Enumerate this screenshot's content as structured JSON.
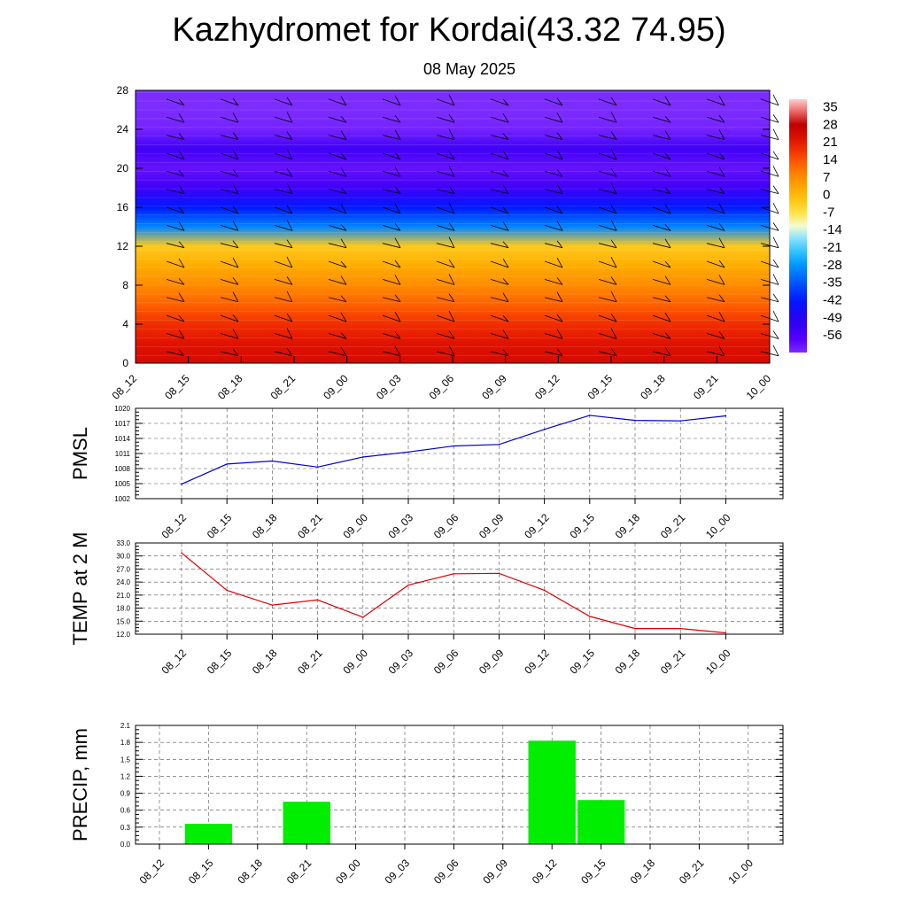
{
  "title": "Kazhydromet for Kordai(43.32 74.95)",
  "subtitle": "08 May 2025",
  "colors": {
    "pmsl_line": "#0000cc",
    "temp_line": "#dd0000",
    "precip_bar": "#00ee00"
  },
  "chart_data": [
    {
      "type": "heatmap",
      "name": "cross-section",
      "x": [
        "08_12",
        "08_15",
        "08_18",
        "08_21",
        "09_00",
        "09_03",
        "09_06",
        "09_09",
        "09_12",
        "09_15",
        "09_18",
        "09_21",
        "10_00"
      ],
      "yticks": [
        0,
        4,
        8,
        12,
        16,
        20,
        24,
        28
      ],
      "ylim": [
        0,
        28
      ],
      "profile_levels": [
        0,
        2,
        4,
        6,
        8,
        10,
        12,
        14,
        16,
        18,
        20,
        22,
        24,
        26,
        28
      ],
      "profile_values": [
        24,
        22,
        18,
        12,
        7,
        2,
        -3,
        -30,
        -42,
        -54,
        -60,
        -54,
        -62,
        -64,
        -64
      ],
      "colorbar": {
        "labels": [
          35,
          28,
          21,
          14,
          7,
          0,
          -7,
          -14,
          -21,
          -28,
          -35,
          -42,
          -49,
          -56
        ],
        "range": [
          -63,
          38
        ]
      }
    },
    {
      "type": "line",
      "name": "PMSL",
      "ylabel": "PMSL",
      "x": [
        "08_12",
        "08_15",
        "08_18",
        "08_21",
        "09_00",
        "09_03",
        "09_06",
        "09_09",
        "09_12",
        "09_15",
        "09_18",
        "09_21",
        "10_00"
      ],
      "values": [
        1004.9,
        1008.9,
        1009.5,
        1008.3,
        1010.3,
        1011.3,
        1012.5,
        1012.8,
        1015.8,
        1018.6,
        1017.6,
        1017.5,
        1018.5
      ],
      "yticks": [
        "1002",
        "1005",
        "1008",
        "1011",
        "1014",
        "1017",
        "1020"
      ],
      "ylim": [
        1002,
        1020
      ]
    },
    {
      "type": "line",
      "name": "TEMP",
      "ylabel": "TEMP at 2 M",
      "x": [
        "08_12",
        "08_15",
        "08_18",
        "08_21",
        "09_00",
        "09_03",
        "09_06",
        "09_09",
        "09_12",
        "09_15",
        "09_18",
        "09_21",
        "10_00"
      ],
      "values": [
        30.7,
        22.1,
        18.7,
        19.9,
        15.9,
        23.3,
        25.9,
        26.0,
        22.1,
        16.1,
        13.3,
        13.3,
        12.3
      ],
      "yticks": [
        "12.0",
        "15.0",
        "18.0",
        "21.0",
        "24.0",
        "27.0",
        "30.0",
        "33.0"
      ],
      "ylim": [
        12,
        33
      ]
    },
    {
      "type": "bar",
      "name": "PRECIP",
      "ylabel": "PRECIP, mm",
      "categories": [
        "08_12",
        "08_15",
        "08_18",
        "08_21",
        "09_00",
        "09_03",
        "09_06",
        "09_09",
        "09_12",
        "09_15",
        "09_18",
        "09_21",
        "10_00"
      ],
      "values": [
        0,
        0.36,
        0,
        0.75,
        0,
        0,
        0,
        0,
        1.83,
        0.78,
        0,
        0,
        0
      ],
      "yticks": [
        "0.0",
        "0.3",
        "0.6",
        "0.9",
        "1.2",
        "1.5",
        "1.8",
        "2.1"
      ],
      "ylim": [
        0,
        2.1
      ]
    }
  ]
}
